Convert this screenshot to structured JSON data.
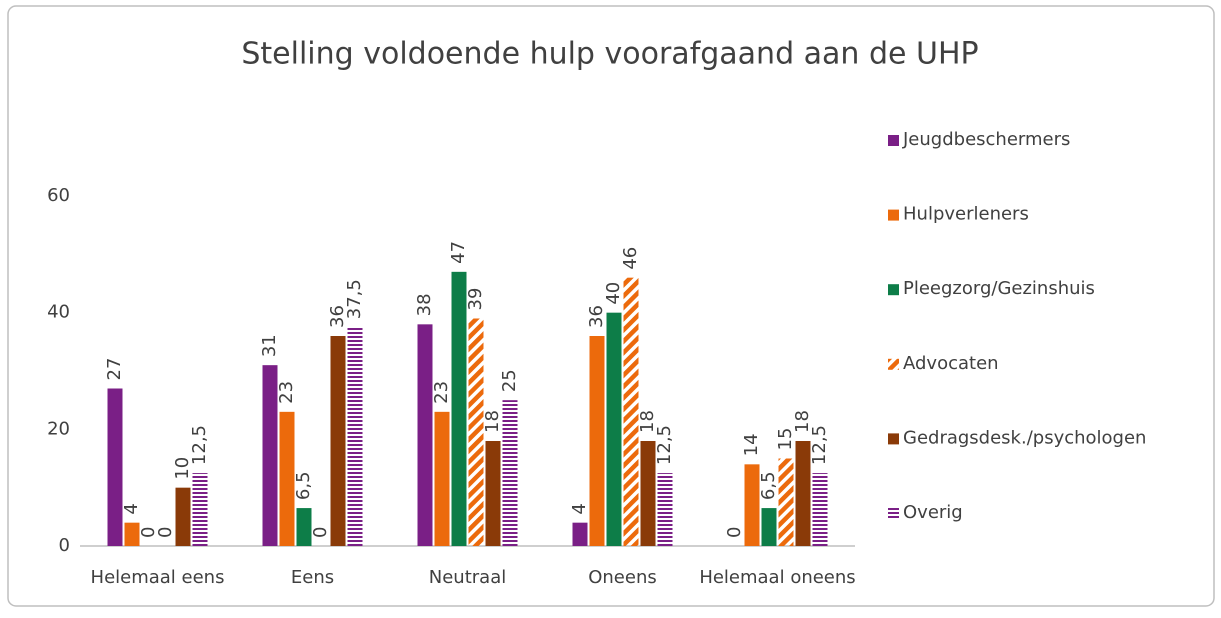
{
  "chart_data": {
    "type": "bar",
    "title": "Stelling voldoende hulp voorafgaand aan de UHP",
    "categories": [
      "Helemaal eens",
      "Eens",
      "Neutraal",
      "Oneens",
      "Helemaal oneens"
    ],
    "series": [
      {
        "name": "Jeugdbeschermers",
        "color": "#7a1f86",
        "values": [
          27,
          31,
          38,
          4,
          0
        ]
      },
      {
        "name": "Hulpverleners",
        "color": "#ec6a0c",
        "values": [
          4,
          23,
          23,
          36,
          14
        ]
      },
      {
        "name": "Pleegzorg/Gezinshuis",
        "color": "#0d7d48",
        "values": [
          0,
          6.5,
          47,
          40,
          6.5
        ],
        "value_labels": [
          "0",
          "6,5",
          "47",
          "40",
          "6,5"
        ]
      },
      {
        "name": "Advocaten",
        "color": "#ec6a0c",
        "pattern": "diagonal",
        "values": [
          0,
          0,
          39,
          46,
          15
        ]
      },
      {
        "name": "Gedragsdesk./psychologen",
        "color": "#8a3a08",
        "values": [
          10,
          36,
          18,
          18,
          18
        ]
      },
      {
        "name": "Overig",
        "color": "#7a1f86",
        "pattern": "horizontal",
        "values": [
          12.5,
          37.5,
          25,
          12.5,
          12.5
        ],
        "value_labels": [
          "12,5",
          "37,5",
          "25",
          "12,5",
          "12,5"
        ]
      }
    ],
    "ylim": [
      0,
      60
    ],
    "yticks": [
      0,
      20,
      40,
      60
    ],
    "grid": false,
    "legend": "right"
  }
}
